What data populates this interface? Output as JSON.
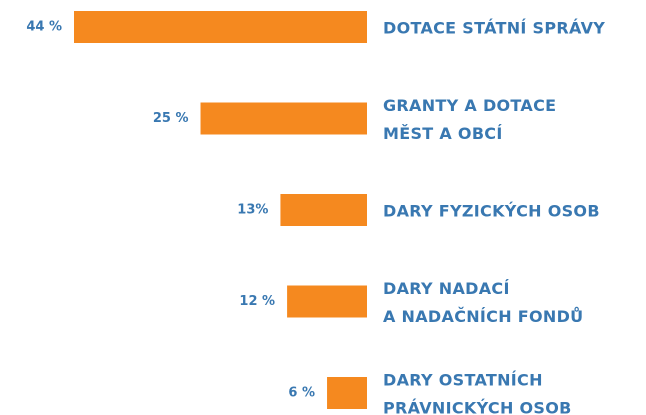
{
  "chart_data": {
    "type": "bar",
    "orientation": "horizontal",
    "color": "#f5891f",
    "categories": [
      [
        "DOTACE STÁTNÍ SPRÁVY"
      ],
      [
        "GRANTY A DOTACE",
        "MĚST A OBCÍ"
      ],
      [
        "DARY FYZICKÝCH OSOB"
      ],
      [
        "DARY NADACÍ",
        "A NADAČNÍCH FONDŮ"
      ],
      [
        "DARY OSTATNÍCH",
        "PRÁVNICKÝCH OSOB"
      ]
    ],
    "values": [
      44,
      25,
      13,
      12,
      6
    ],
    "value_labels": [
      "44 %",
      "25 %",
      "13%",
      "12 %",
      "6 %"
    ]
  }
}
